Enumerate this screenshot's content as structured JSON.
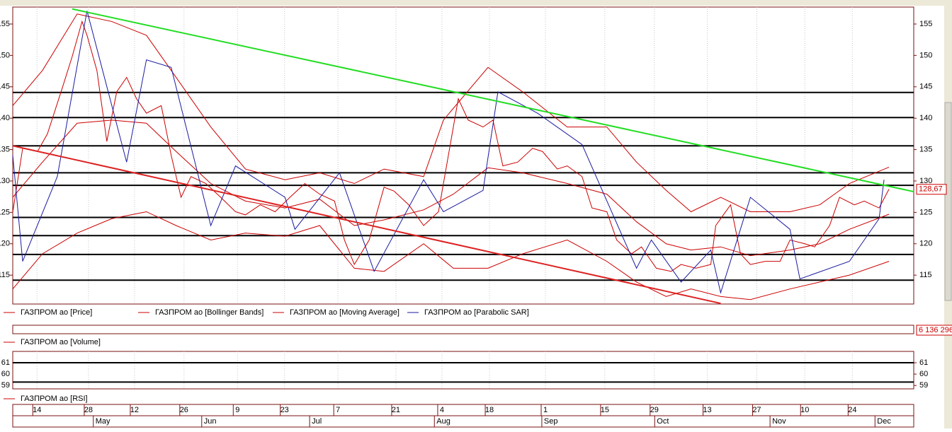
{
  "price_panel": {
    "ylim": [
      110.4,
      157.7
    ],
    "xlim": [
      0,
      182
    ],
    "yticks": [
      115,
      120,
      125,
      130,
      135,
      140,
      145,
      150,
      155
    ],
    "levels": [
      144.1,
      140.1,
      135.6,
      131.3,
      129.3,
      124.2,
      121.3,
      118.3,
      114.2
    ],
    "last_price": {
      "value": 128.67,
      "label": "128,67"
    },
    "series": [
      {
        "name": "ГАЗПРОМ ао [Price]",
        "kind": "line",
        "color": "#cc0000",
        "x": [
          0,
          2,
          5,
          7,
          10,
          12,
          14,
          15,
          17,
          19,
          21,
          23,
          25,
          27,
          30,
          32,
          34,
          36,
          39,
          42,
          45,
          47,
          50,
          53,
          56,
          59,
          62,
          65,
          67,
          69,
          72,
          75,
          77,
          80,
          83,
          86,
          88,
          90,
          92,
          95,
          97,
          99,
          102,
          105,
          107,
          110,
          112,
          115,
          117,
          120,
          122,
          125,
          127,
          130,
          133,
          135,
          138,
          141,
          142,
          145,
          147,
          149,
          152,
          155,
          157,
          160,
          162,
          165,
          167,
          170,
          172,
          175,
          177
        ],
        "values": [
          125,
          135.2,
          134.7,
          137.5,
          144.8,
          149.8,
          155.4,
          153.2,
          147.6,
          136.3,
          144.2,
          146.5,
          143.1,
          140.8,
          142,
          134.1,
          127.4,
          130.7,
          129.6,
          127.4,
          125.1,
          124.6,
          126.2,
          125.1,
          127.4,
          129.6,
          127.9,
          126.8,
          120.6,
          116.7,
          120.6,
          129,
          128.4,
          126.2,
          122.9,
          125.1,
          134.1,
          143.1,
          139.7,
          138.6,
          139.7,
          132.4,
          133,
          135.2,
          134.7,
          131.9,
          132.4,
          130.7,
          125.7,
          125.1,
          120.6,
          118.4,
          119.5,
          116.1,
          115.6,
          116.7,
          116.1,
          116.7,
          122.9,
          126.2,
          118.4,
          116.7,
          117.2,
          117.2,
          120.6,
          120,
          119.5,
          122.9,
          127.4,
          126.2,
          126.8,
          125.7,
          128.7
        ]
      },
      {
        "name": "ГАЗПРОМ ао [Bollinger Bands]",
        "kind": "bands",
        "color": "#cc0000",
        "upper_x": [
          0,
          6,
          13,
          20,
          27,
          33,
          40,
          47,
          55,
          62,
          69,
          75,
          83,
          87,
          96,
          103,
          112,
          120,
          126,
          132,
          137,
          143,
          149,
          157,
          163,
          169,
          177
        ],
        "upper": [
          142,
          147.6,
          156.6,
          155.4,
          153.2,
          146.5,
          138.6,
          131.9,
          130.2,
          131.3,
          129.6,
          131.9,
          130.7,
          139.7,
          148.1,
          144.2,
          138.6,
          138.6,
          133,
          128.5,
          125.1,
          127.4,
          125.1,
          125.1,
          126.2,
          129.6,
          132.2
        ],
        "lower_x": [
          0,
          6,
          13,
          20,
          27,
          33,
          40,
          47,
          55,
          62,
          69,
          75,
          83,
          89,
          96,
          103,
          112,
          120,
          126,
          132,
          137,
          143,
          149,
          157,
          163,
          169,
          177
        ],
        "lower": [
          112.8,
          118.4,
          121.7,
          124,
          125.1,
          122.9,
          120.6,
          121.7,
          121.2,
          122.9,
          116.1,
          115.6,
          120,
          116.1,
          116.1,
          118.4,
          120.6,
          117.2,
          113.9,
          111.6,
          112.8,
          111.6,
          111.1,
          112.8,
          113.9,
          115,
          117.2
        ]
      },
      {
        "name": "ГАЗПРОМ ао [Moving Average]",
        "kind": "line",
        "color": "#cc0000",
        "x": [
          0,
          6,
          13,
          20,
          27,
          33,
          40,
          47,
          55,
          62,
          69,
          75,
          83,
          89,
          96,
          103,
          112,
          120,
          126,
          132,
          137,
          143,
          149,
          157,
          163,
          169,
          177
        ],
        "values": [
          127.4,
          133,
          139.2,
          139.7,
          139.2,
          134.7,
          129.6,
          126.8,
          125.7,
          127.1,
          122.9,
          123.8,
          125.4,
          127.9,
          132.1,
          131.3,
          129.6,
          127.9,
          123.5,
          120,
          119,
          119.5,
          118.1,
          119,
          120,
          122.3,
          124.7
        ]
      },
      {
        "name": "ГАЗПРОМ ао [Parabolic SAR]",
        "kind": "line",
        "color": "#1a1aa0",
        "x": [
          0,
          2,
          9,
          15,
          23,
          27,
          32,
          40,
          45,
          55,
          57,
          66,
          73,
          83,
          87,
          95,
          98,
          106,
          115,
          126,
          129,
          135,
          141,
          143,
          149,
          157,
          159,
          169,
          175,
          176
        ],
        "values": [
          134.1,
          117.2,
          130.7,
          157.1,
          133,
          149.3,
          148.1,
          122.9,
          132.4,
          127.4,
          122.3,
          131.3,
          115.6,
          130.2,
          125.1,
          128.5,
          144.2,
          140.8,
          135.8,
          116.1,
          120.6,
          113.9,
          119,
          112.2,
          127.4,
          122.3,
          114.4,
          117.2,
          124,
          130.2
        ]
      }
    ],
    "trendlines": [
      {
        "color": "#22dd22",
        "x": [
          12,
          182
        ],
        "values": [
          157.4,
          128.3
        ]
      },
      {
        "color": "#dd2222",
        "x": [
          0,
          143
        ],
        "values": [
          135.6,
          110.5
        ]
      }
    ]
  },
  "volume_panel": {
    "name": "ГАЗПРОМ ао [Volume]",
    "last": {
      "value": 6136296,
      "label": "6 136 296"
    }
  },
  "rsi_panel": {
    "name": "ГАЗПРОМ ао [RSI]",
    "ylim": [
      58.7,
      62
    ],
    "yticks": [
      59,
      60,
      61
    ],
    "levels": [
      61,
      59.3
    ]
  },
  "date_axis": {
    "days": [
      {
        "value": 4.9,
        "label": "14"
      },
      {
        "value": 15.3,
        "label": "28"
      },
      {
        "value": 24.6,
        "label": "12"
      },
      {
        "value": 34.6,
        "label": "26"
      },
      {
        "value": 45.4,
        "label": "9"
      },
      {
        "value": 54.9,
        "label": "23"
      },
      {
        "value": 65.7,
        "label": "7"
      },
      {
        "value": 77.4,
        "label": "21"
      },
      {
        "value": 86.7,
        "label": "4"
      },
      {
        "value": 96.3,
        "label": "18"
      },
      {
        "value": 107.6,
        "label": "1"
      },
      {
        "value": 119.6,
        "label": "15"
      },
      {
        "value": 129.6,
        "label": "29"
      },
      {
        "value": 140.3,
        "label": "13"
      },
      {
        "value": 150.3,
        "label": "27"
      },
      {
        "value": 160,
        "label": "10"
      },
      {
        "value": 169.6,
        "label": "24"
      }
    ],
    "months": [
      {
        "value": 16.7,
        "label": "May"
      },
      {
        "value": 38.6,
        "label": "Jun"
      },
      {
        "value": 60.4,
        "label": "Jul"
      },
      {
        "value": 85.6,
        "label": "Aug"
      },
      {
        "value": 107.3,
        "label": "Sep"
      },
      {
        "value": 130.1,
        "label": "Oct"
      },
      {
        "value": 153.4,
        "label": "Nov"
      },
      {
        "value": 174.6,
        "label": "Dec"
      }
    ]
  }
}
